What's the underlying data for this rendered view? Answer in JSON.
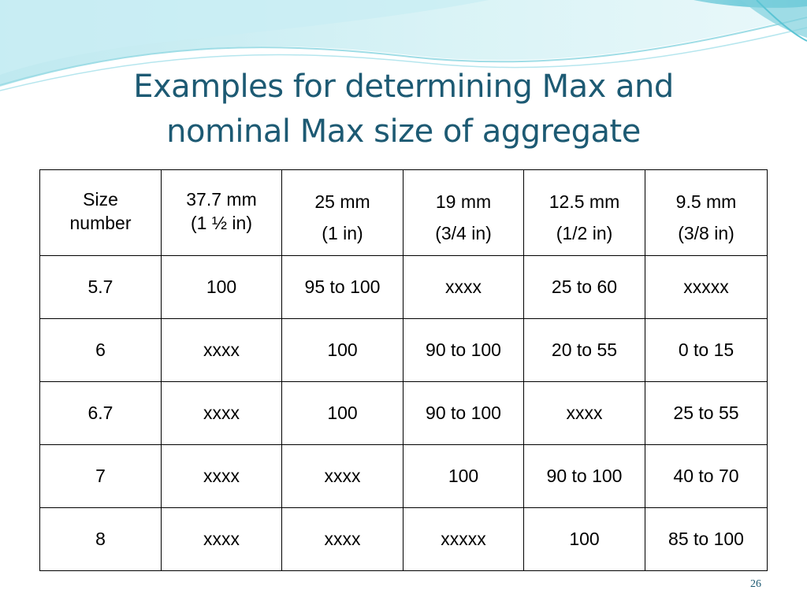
{
  "slide": {
    "title_line1": "Examples for determining Max and",
    "title_line2": "nominal Max size of aggregate",
    "page_number": "26",
    "colors": {
      "title": "#1d5a73",
      "wave_light": "#d6f1f5",
      "wave_mid": "#9fdde6",
      "wave_dark": "#5bc4d4"
    }
  },
  "table": {
    "header": [
      {
        "line1": "Size",
        "line2": "number"
      },
      {
        "line1": "37.7 mm",
        "line2": "(1 ½ in)"
      },
      {
        "line1": "25 mm",
        "line2": "(1 in)"
      },
      {
        "line1": "19 mm",
        "line2": "(3/4 in)"
      },
      {
        "line1": "12.5 mm",
        "line2": "(1/2 in)"
      },
      {
        "line1": "9.5 mm",
        "line2": "(3/8 in)"
      }
    ],
    "rows": [
      [
        "5.7",
        "100",
        "95 to 100",
        "xxxx",
        "25 to 60",
        "xxxxx"
      ],
      [
        "6",
        "xxxx",
        "100",
        "90 to 100",
        "20 to 55",
        "0 to 15"
      ],
      [
        "6.7",
        "xxxx",
        "100",
        "90 to 100",
        "xxxx",
        "25 to 55"
      ],
      [
        "7",
        "xxxx",
        "xxxx",
        "100",
        "90 to 100",
        "40 to 70"
      ],
      [
        "8",
        "xxxx",
        "xxxx",
        "xxxxx",
        "100",
        "85 to 100"
      ]
    ]
  }
}
